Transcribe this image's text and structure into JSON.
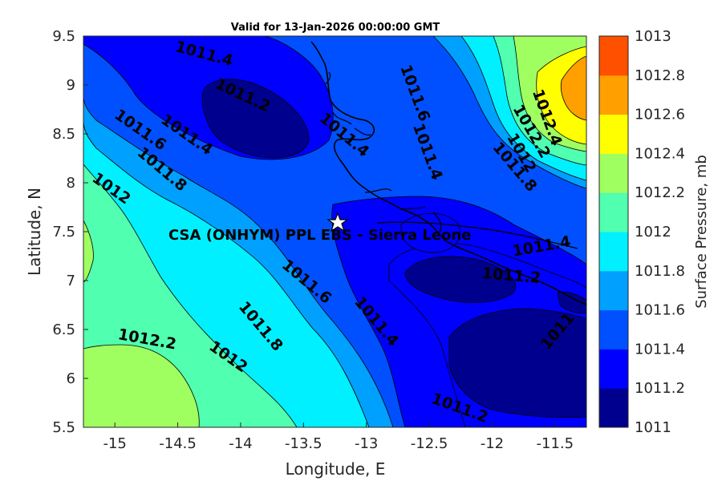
{
  "title": "Valid for 13-Jan-2026 00:00:00 GMT",
  "site_label": "CSA (ONHYM) PPL EBS - Sierra Leone",
  "x_axis": {
    "label": "Longitude, E",
    "ticks": [
      "-15",
      "-14.5",
      "-14",
      "-13.5",
      "-13",
      "-12.5",
      "-12",
      "-11.5"
    ],
    "range": [
      -15.25,
      -11.25
    ]
  },
  "y_axis": {
    "label": "Latitude, N",
    "ticks": [
      "9.5",
      "9",
      "8.5",
      "8",
      "7.5",
      "7",
      "6.5",
      "6",
      "5.5"
    ],
    "range": [
      5.5,
      9.5
    ]
  },
  "colorbar": {
    "label": "Surface Pressure, mb",
    "ticks": [
      "1013",
      "1012.8",
      "1012.6",
      "1012.4",
      "1012.2",
      "1012",
      "1011.8",
      "1011.6",
      "1011.4",
      "1011.2",
      "1011"
    ],
    "colors": [
      "#00008f",
      "#0000ff",
      "#0050ff",
      "#00a0ff",
      "#00f0ff",
      "#50ffaf",
      "#a0ff60",
      "#ffff00",
      "#ffa000",
      "#ff5000",
      "#ff0000"
    ]
  },
  "chart_data": {
    "type": "contour",
    "title": "Valid for 13-Jan-2026 00:00:00 GMT",
    "xlabel": "Longitude, E",
    "ylabel": "Latitude, N",
    "xlim": [
      -15.25,
      -11.25
    ],
    "ylim": [
      5.5,
      9.5
    ],
    "levels": [
      1011,
      1011.2,
      1011.4,
      1011.6,
      1011.8,
      1012,
      1012.2,
      1012.4,
      1012.6,
      1012.8,
      1013
    ],
    "marker": {
      "lon": -13.23,
      "lat": 7.58,
      "label": "CSA (ONHYM) PPL EBS - Sierra Leone"
    },
    "contour_labels": [
      {
        "text": "1011.4",
        "lon": -14.3,
        "lat": 9.27
      },
      {
        "text": "1011.2",
        "lon": -14.0,
        "lat": 8.85
      },
      {
        "text": "1011.6",
        "lon": -14.82,
        "lat": 8.5
      },
      {
        "text": "1011.4",
        "lon": -14.45,
        "lat": 8.45
      },
      {
        "text": "1011.8",
        "lon": -14.65,
        "lat": 8.1
      },
      {
        "text": "1012",
        "lon": -15.05,
        "lat": 7.9
      },
      {
        "text": "1011.4",
        "lon": -13.2,
        "lat": 8.45
      },
      {
        "text": "1011.6",
        "lon": -12.65,
        "lat": 8.9
      },
      {
        "text": "1011.4",
        "lon": -12.55,
        "lat": 8.3
      },
      {
        "text": "1012.4",
        "lon": -11.6,
        "lat": 8.65
      },
      {
        "text": "1012.2",
        "lon": -11.72,
        "lat": 8.5
      },
      {
        "text": "1012",
        "lon": -11.8,
        "lat": 8.28
      },
      {
        "text": "1011.8",
        "lon": -11.85,
        "lat": 8.13
      },
      {
        "text": "1011.6",
        "lon": -13.5,
        "lat": 6.95
      },
      {
        "text": "1011.8",
        "lon": -13.87,
        "lat": 6.5
      },
      {
        "text": "1011.4",
        "lon": -12.95,
        "lat": 6.55
      },
      {
        "text": "1012",
        "lon": -14.12,
        "lat": 6.18
      },
      {
        "text": "1012.2",
        "lon": -14.75,
        "lat": 6.35
      },
      {
        "text": "1011.4",
        "lon": -11.6,
        "lat": 7.3
      },
      {
        "text": "1011.2",
        "lon": -11.85,
        "lat": 7.0
      },
      {
        "text": "1011",
        "lon": -11.45,
        "lat": 6.45
      },
      {
        "text": "1011.2",
        "lon": -12.27,
        "lat": 5.65
      }
    ]
  }
}
